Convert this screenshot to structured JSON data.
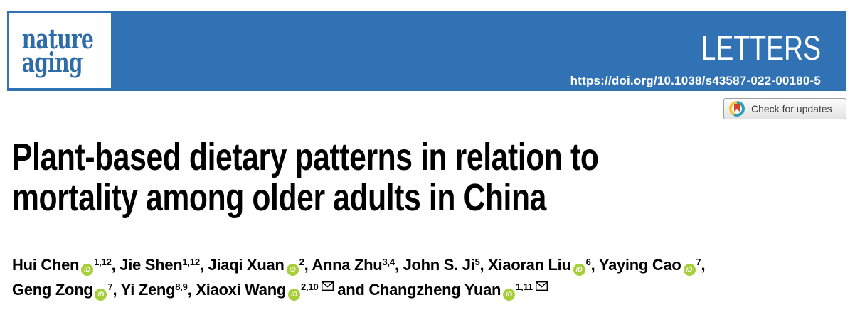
{
  "header": {
    "logo": {
      "line1": "nature",
      "line2": "aging"
    },
    "article_type": "LETTERS",
    "doi": "https://doi.org/10.1038/s43587-022-00180-5"
  },
  "crossmark": {
    "label": "Check for updates"
  },
  "article": {
    "title_line1": "Plant-based dietary patterns in relation to",
    "title_line2": "mortality among older adults in China"
  },
  "authors": {
    "line1": [
      {
        "name": "Hui Chen",
        "orcid": true,
        "sup": "1,12",
        "env": false,
        "sep": ", "
      },
      {
        "name": "Jie Shen",
        "orcid": false,
        "sup": "1,12",
        "env": false,
        "sep": ", "
      },
      {
        "name": "Jiaqi Xuan",
        "orcid": true,
        "sup": "2",
        "env": false,
        "sep": ", "
      },
      {
        "name": "Anna Zhu",
        "orcid": false,
        "sup": "3,4",
        "env": false,
        "sep": ", "
      },
      {
        "name": "John S. Ji",
        "orcid": false,
        "sup": "5",
        "env": false,
        "sep": ", "
      },
      {
        "name": "Xiaoran Liu",
        "orcid": true,
        "sup": "6",
        "env": false,
        "sep": ", "
      },
      {
        "name": "Yaying Cao",
        "orcid": true,
        "sup": "7",
        "env": false,
        "sep": ","
      }
    ],
    "line2": [
      {
        "name": "Geng Zong",
        "orcid": true,
        "sup": "7",
        "env": false,
        "sep": ", "
      },
      {
        "name": "Yi Zeng",
        "orcid": false,
        "sup": "8,9",
        "env": false,
        "sep": ", "
      },
      {
        "name": "Xiaoxi Wang",
        "orcid": true,
        "sup": "2,10",
        "env": true,
        "sep": " and "
      },
      {
        "name": "Changzheng Yuan",
        "orcid": true,
        "sup": "1,11",
        "env": true,
        "sep": ""
      }
    ]
  },
  "icons": {
    "orcid_label": "iD"
  },
  "colors": {
    "header_blue": "#3172b5",
    "logo_blue": "#2d6ca9",
    "orcid_green": "#a6ce39",
    "crossmark_teal": "#2f9fb7",
    "crossmark_yellow": "#f2c33d",
    "crossmark_red": "#d64330",
    "title_black": "#000000"
  }
}
